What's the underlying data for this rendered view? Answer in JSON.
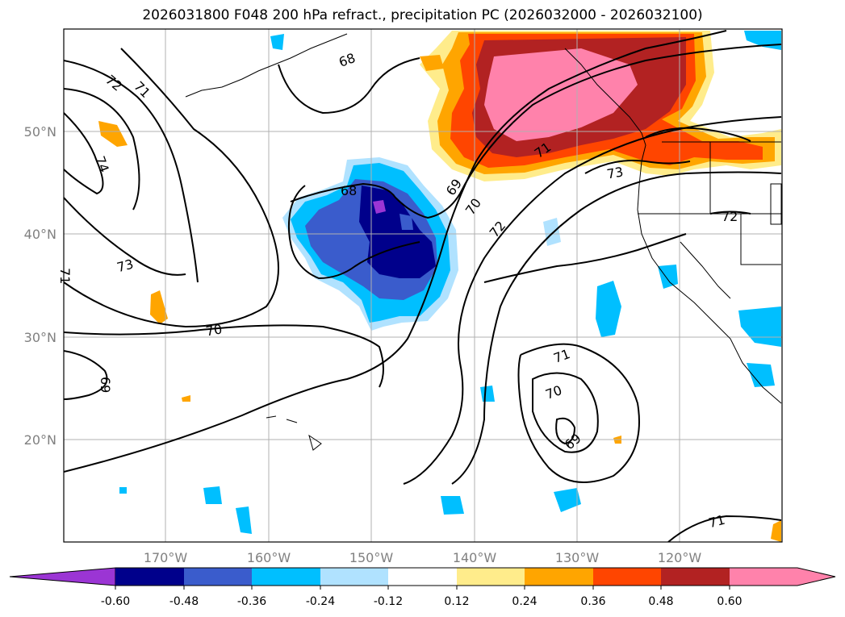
{
  "title": "2026031800 F048 200 hPa refract., precipitation PC (2026032000 - 2026032100)",
  "lat_labels": [
    "50°N",
    "40°N",
    "30°N",
    "20°N"
  ],
  "lon_labels": [
    "170°W",
    "160°W",
    "150°W",
    "140°W",
    "130°W",
    "120°W"
  ],
  "contour_labels": [
    "72",
    "71",
    "74",
    "71",
    "73",
    "70",
    "69",
    "68",
    "68",
    "69",
    "70",
    "72",
    "71",
    "73",
    "72",
    "71",
    "70",
    "69",
    "71"
  ],
  "colorbar": {
    "colors": [
      "#9b35d4",
      "#00008b",
      "#3a5ccc",
      "#00bfff",
      "#b0e2ff",
      "#ffffff",
      "#ffec8b",
      "#ffa500",
      "#ff4500",
      "#b22222",
      "#ff82ab"
    ],
    "tick_labels": [
      "-0.60",
      "-0.48",
      "-0.36",
      "-0.24",
      "-0.12",
      "0.12",
      "0.24",
      "0.36",
      "0.48",
      "0.60"
    ]
  },
  "colors": {
    "gridline": "#b0b0b0",
    "contour": "#000000",
    "coast": "#000000",
    "tick_label": "#808080"
  }
}
